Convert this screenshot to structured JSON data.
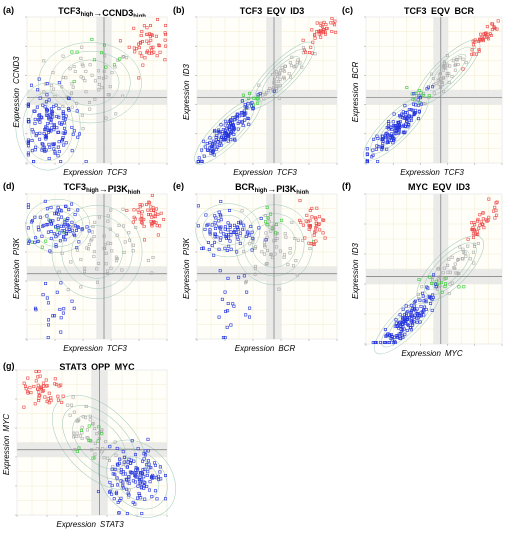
{
  "figure": {
    "panels": [
      {
        "id": "a",
        "label": "(a) ",
        "title": "TCF3high→CCND3high",
        "xlabel": "Expression TCF3 ",
        "ylabel": "Expression CCND3 "
      },
      {
        "id": "b",
        "label": "(b) ",
        "title": "TCF3 EQV ID3",
        "xlabel": "Expression TCF3 ",
        "ylabel": "Expression ID3 "
      },
      {
        "id": "c",
        "label": "(c) ",
        "title": "TCF3 EQV BCR",
        "xlabel": "Expression TCF3 ",
        "ylabel": "Expression BCR "
      },
      {
        "id": "d",
        "label": "(d) ",
        "title": "TCF3high→PI3Khigh",
        "xlabel": "Expression TCF3 ",
        "ylabel": "Expression PI3K "
      },
      {
        "id": "e",
        "label": "(e) ",
        "title": "BCRhigh→PI3Khigh",
        "xlabel": "Expression BCR ",
        "ylabel": "Expression PI3K "
      },
      {
        "id": "f",
        "label": "(f) ",
        "title": "MYC EQV ID3",
        "xlabel": "Expression MYC ",
        "ylabel": "Expression ID3 "
      },
      {
        "id": "g",
        "label": "(g) ",
        "title": "STAT3 OPP MYC",
        "xlabel": "Expression STAT3 ",
        "ylabel": "Expression MYC "
      }
    ]
  },
  "colors": {
    "low": "#2233dd",
    "high": "#ee4444",
    "mid": "#33cc33",
    "other": "#aaaaaa",
    "contour": "#9fc9b8",
    "band": "#e6e6e6",
    "divider": "#777777",
    "grid": "#f3e7c4"
  },
  "chart_data": [
    {
      "panel": "a",
      "type": "scatter",
      "pattern": "corner",
      "thresholds": [
        0.55,
        0.45
      ],
      "clusters": [
        {
          "color": "low",
          "center": [
            0.15,
            0.25
          ],
          "spread": [
            0.1,
            0.13
          ],
          "count": 150
        },
        {
          "color": "high",
          "center": [
            0.87,
            0.82
          ],
          "spread": [
            0.07,
            0.07
          ],
          "count": 50
        },
        {
          "color": "mid",
          "center": [
            0.45,
            0.68
          ],
          "spread": [
            0.12,
            0.1
          ],
          "count": 10
        },
        {
          "color": "other",
          "center": [
            0.45,
            0.55
          ],
          "spread": [
            0.16,
            0.12
          ],
          "count": 60
        }
      ]
    },
    {
      "panel": "b",
      "type": "scatter",
      "pattern": "diagonal",
      "thresholds": [
        0.55,
        0.45
      ],
      "clusters": [
        {
          "color": "low",
          "center": [
            0.22,
            0.22
          ],
          "spread": [
            0.1,
            0.04
          ],
          "count": 150
        },
        {
          "color": "high",
          "center": [
            0.87,
            0.88
          ],
          "spread": [
            0.06,
            0.03
          ],
          "count": 40
        },
        {
          "color": "mid",
          "center": [
            0.4,
            0.42
          ],
          "spread": [
            0.05,
            0.03
          ],
          "count": 12
        },
        {
          "color": "other",
          "center": [
            0.6,
            0.6
          ],
          "spread": [
            0.1,
            0.04
          ],
          "count": 50
        }
      ]
    },
    {
      "panel": "c",
      "type": "scatter",
      "pattern": "diagonal",
      "thresholds": [
        0.55,
        0.45
      ],
      "clusters": [
        {
          "color": "low",
          "center": [
            0.22,
            0.24
          ],
          "spread": [
            0.1,
            0.04
          ],
          "count": 150
        },
        {
          "color": "high",
          "center": [
            0.87,
            0.86
          ],
          "spread": [
            0.05,
            0.03
          ],
          "count": 40
        },
        {
          "color": "mid",
          "center": [
            0.38,
            0.45
          ],
          "spread": [
            0.05,
            0.03
          ],
          "count": 10
        },
        {
          "color": "other",
          "center": [
            0.6,
            0.62
          ],
          "spread": [
            0.1,
            0.04
          ],
          "count": 50
        }
      ]
    },
    {
      "panel": "d",
      "type": "scatter",
      "pattern": "corner",
      "thresholds": [
        0.55,
        0.45
      ],
      "clusters": [
        {
          "color": "low",
          "center": [
            0.22,
            0.78
          ],
          "spread": [
            0.1,
            0.08
          ],
          "count": 90
        },
        {
          "color": "low",
          "center": [
            0.18,
            0.25
          ],
          "spread": [
            0.08,
            0.12
          ],
          "count": 20
        },
        {
          "color": "high",
          "center": [
            0.87,
            0.85
          ],
          "spread": [
            0.06,
            0.07
          ],
          "count": 50
        },
        {
          "color": "mid",
          "center": [
            0.15,
            0.7
          ],
          "spread": [
            0.06,
            0.06
          ],
          "count": 10
        },
        {
          "color": "other",
          "center": [
            0.5,
            0.6
          ],
          "spread": [
            0.14,
            0.14
          ],
          "count": 60
        }
      ]
    },
    {
      "panel": "e",
      "type": "scatter",
      "pattern": "corner",
      "thresholds": [
        0.55,
        0.45
      ],
      "clusters": [
        {
          "color": "low",
          "center": [
            0.22,
            0.75
          ],
          "spread": [
            0.1,
            0.08
          ],
          "count": 90
        },
        {
          "color": "low",
          "center": [
            0.25,
            0.25
          ],
          "spread": [
            0.08,
            0.12
          ],
          "count": 20
        },
        {
          "color": "high",
          "center": [
            0.82,
            0.78
          ],
          "spread": [
            0.06,
            0.08
          ],
          "count": 40
        },
        {
          "color": "mid",
          "center": [
            0.55,
            0.8
          ],
          "spread": [
            0.1,
            0.06
          ],
          "count": 10
        },
        {
          "color": "other",
          "center": [
            0.55,
            0.65
          ],
          "spread": [
            0.12,
            0.12
          ],
          "count": 60
        }
      ]
    },
    {
      "panel": "f",
      "type": "scatter",
      "pattern": "diagonal",
      "thresholds": [
        0.55,
        0.45
      ],
      "clusters": [
        {
          "color": "low",
          "center": [
            0.3,
            0.15
          ],
          "spread": [
            0.1,
            0.04
          ],
          "count": 150
        },
        {
          "color": "high",
          "center": [
            0.85,
            0.82
          ],
          "spread": [
            0.05,
            0.04
          ],
          "count": 40
        },
        {
          "color": "mid",
          "center": [
            0.52,
            0.4
          ],
          "spread": [
            0.08,
            0.03
          ],
          "count": 12
        },
        {
          "color": "other",
          "center": [
            0.62,
            0.5
          ],
          "spread": [
            0.1,
            0.05
          ],
          "count": 50
        }
      ]
    },
    {
      "panel": "g",
      "type": "scatter",
      "pattern": "anti-diagonal",
      "thresholds": [
        0.55,
        0.45
      ],
      "clusters": [
        {
          "color": "low",
          "center": [
            0.8,
            0.25
          ],
          "spread": [
            0.09,
            0.1
          ],
          "count": 140
        },
        {
          "color": "high",
          "center": [
            0.18,
            0.85
          ],
          "spread": [
            0.08,
            0.06
          ],
          "count": 50
        },
        {
          "color": "mid",
          "center": [
            0.47,
            0.58
          ],
          "spread": [
            0.06,
            0.06
          ],
          "count": 10
        },
        {
          "color": "other",
          "center": [
            0.55,
            0.5
          ],
          "spread": [
            0.12,
            0.1
          ],
          "count": 60
        }
      ]
    }
  ]
}
